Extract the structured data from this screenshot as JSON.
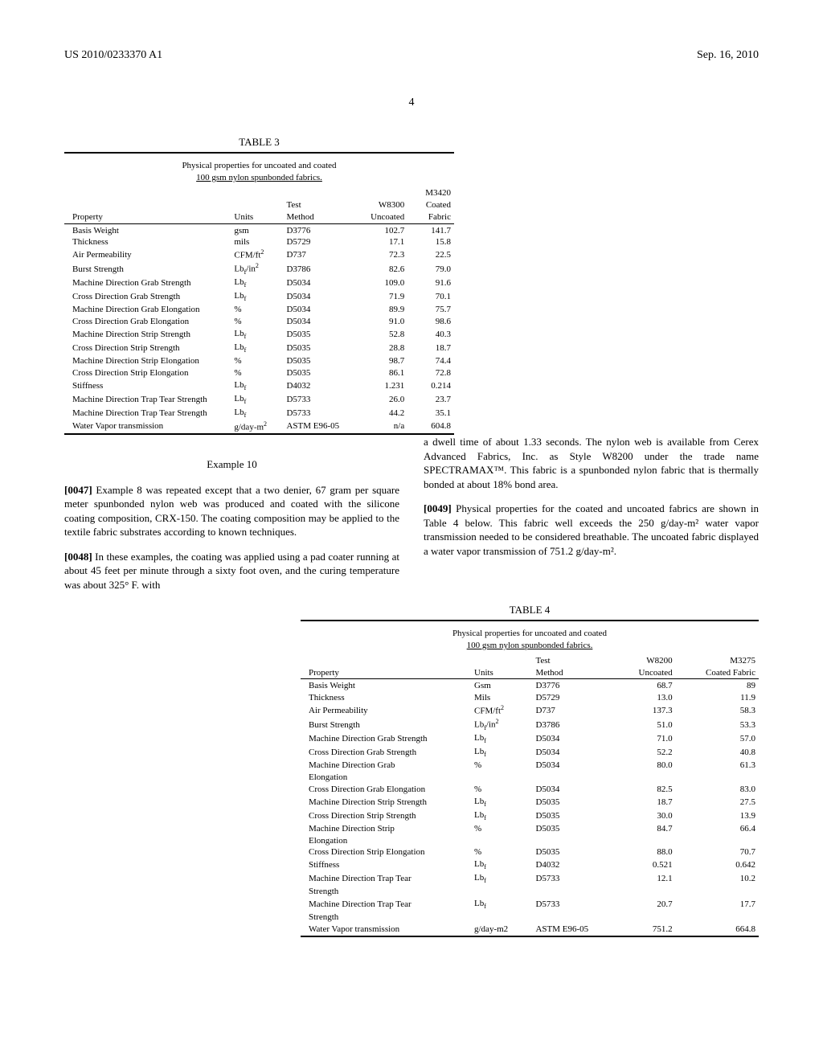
{
  "header": {
    "left": "US 2010/0233370 A1",
    "right": "Sep. 16, 2010",
    "page": "4"
  },
  "table3": {
    "label": "TABLE 3",
    "caption_line1": "Physical properties for uncoated and coated",
    "caption_line2": "100 gsm nylon spunbonded fabrics.",
    "headers": {
      "property": "Property",
      "units": "Units",
      "method": "Test\nMethod",
      "col1": "W8300\nUncoated",
      "col2": "M3420\nCoated\nFabric"
    },
    "rows": [
      {
        "p": "Basis Weight",
        "u": "gsm",
        "m": "D3776",
        "c1": "102.7",
        "c2": "141.7"
      },
      {
        "p": "Thickness",
        "u": "mils",
        "m": "D5729",
        "c1": "17.1",
        "c2": "15.8"
      },
      {
        "p": "Air Permeability",
        "u": "CFM/ft²",
        "m": "D737",
        "c1": "72.3",
        "c2": "22.5"
      },
      {
        "p": "Burst Strength",
        "u": "Lb_f/in²",
        "m": "D3786",
        "c1": "82.6",
        "c2": "79.0"
      },
      {
        "p": "Machine Direction Grab Strength",
        "u": "Lb_f",
        "m": "D5034",
        "c1": "109.0",
        "c2": "91.6"
      },
      {
        "p": "Cross Direction Grab Strength",
        "u": "Lb_f",
        "m": "D5034",
        "c1": "71.9",
        "c2": "70.1"
      },
      {
        "p": "Machine Direction Grab Elongation",
        "u": "%",
        "m": "D5034",
        "c1": "89.9",
        "c2": "75.7"
      },
      {
        "p": "Cross Direction Grab Elongation",
        "u": "%",
        "m": "D5034",
        "c1": "91.0",
        "c2": "98.6"
      },
      {
        "p": "Machine Direction Strip Strength",
        "u": "Lb_f",
        "m": "D5035",
        "c1": "52.8",
        "c2": "40.3"
      },
      {
        "p": "Cross Direction Strip Strength",
        "u": "Lb_f",
        "m": "D5035",
        "c1": "28.8",
        "c2": "18.7"
      },
      {
        "p": "Machine Direction Strip Elongation",
        "u": "%",
        "m": "D5035",
        "c1": "98.7",
        "c2": "74.4"
      },
      {
        "p": "Cross Direction Strip Elongation",
        "u": "%",
        "m": "D5035",
        "c1": "86.1",
        "c2": "72.8"
      },
      {
        "p": "Stiffness",
        "u": "Lb_f",
        "m": "D4032",
        "c1": "1.231",
        "c2": "0.214"
      },
      {
        "p": "Machine Direction Trap Tear Strength",
        "u": "Lb_f",
        "m": "D5733",
        "c1": "26.0",
        "c2": "23.7"
      },
      {
        "p": "Machine Direction Trap Tear Strength",
        "u": "Lb_f",
        "m": "D5733",
        "c1": "44.2",
        "c2": "35.1"
      },
      {
        "p": "Water Vapor transmission",
        "u": "g/day-m²",
        "m": "ASTM E96-05",
        "c1": "n/a",
        "c2": "604.8"
      }
    ]
  },
  "example": {
    "heading": "Example 10",
    "para47_label": "[0047]",
    "para47": "    Example 8 was repeated except that a two denier, 67 gram per square meter spunbonded nylon web was produced and coated with the silicone coating composition, CRX-150. The coating composition may be applied to the textile fabric substrates according to known techniques.",
    "para48_label": "[0048]",
    "para48": "    In these examples, the coating was applied using a pad coater running at about 45 feet per minute through a sixty foot oven, and the curing temperature was about 325° F. with",
    "para48b": "a dwell time of about 1.33 seconds. The nylon web is available from Cerex Advanced Fabrics, Inc. as Style W8200 under the trade name SPECTRAMAX™. This fabric is a spunbonded nylon fabric that is thermally bonded at about 18% bond area.",
    "para49_label": "[0049]",
    "para49": "    Physical properties for the coated and uncoated fabrics are shown in Table 4 below. This fabric well exceeds the 250 g/day-m² water vapor transmission needed to be considered breathable. The uncoated fabric displayed a water vapor transmission of 751.2 g/day-m²."
  },
  "table4": {
    "label": "TABLE 4",
    "caption_line1": "Physical properties for uncoated and coated",
    "caption_line2": "100 gsm nylon spunbonded fabrics.",
    "headers": {
      "property": "Property",
      "units": "Units",
      "method": "Test\nMethod",
      "col1": "W8200\nUncoated",
      "col2": "M3275\nCoated Fabric"
    },
    "rows": [
      {
        "p": "Basis Weight",
        "u": "Gsm",
        "m": "D3776",
        "c1": "68.7",
        "c2": "89"
      },
      {
        "p": "Thickness",
        "u": "Mils",
        "m": "D5729",
        "c1": "13.0",
        "c2": "11.9"
      },
      {
        "p": "Air Permeability",
        "u": "CFM/ft²",
        "m": "D737",
        "c1": "137.3",
        "c2": "58.3"
      },
      {
        "p": "Burst Strength",
        "u": "Lb_f/in²",
        "m": "D3786",
        "c1": "51.0",
        "c2": "53.3"
      },
      {
        "p": "Machine Direction Grab Strength",
        "u": "Lb_f",
        "m": "D5034",
        "c1": "71.0",
        "c2": "57.0"
      },
      {
        "p": "Cross Direction Grab Strength",
        "u": "Lb_f",
        "m": "D5034",
        "c1": "52.2",
        "c2": "40.8"
      },
      {
        "p": "Machine Direction Grab\nElongation",
        "u": "%",
        "m": "D5034",
        "c1": "80.0",
        "c2": "61.3"
      },
      {
        "p": "Cross Direction Grab Elongation",
        "u": "%",
        "m": "D5034",
        "c1": "82.5",
        "c2": "83.0"
      },
      {
        "p": "Machine Direction Strip Strength",
        "u": "Lb_f",
        "m": "D5035",
        "c1": "18.7",
        "c2": "27.5"
      },
      {
        "p": "Cross Direction Strip Strength",
        "u": "Lb_f",
        "m": "D5035",
        "c1": "30.0",
        "c2": "13.9"
      },
      {
        "p": "Machine Direction Strip\nElongation",
        "u": "%",
        "m": "D5035",
        "c1": "84.7",
        "c2": "66.4"
      },
      {
        "p": "Cross Direction Strip Elongation",
        "u": "%",
        "m": "D5035",
        "c1": "88.0",
        "c2": "70.7"
      },
      {
        "p": "Stiffness",
        "u": "Lb_f",
        "m": "D4032",
        "c1": "0.521",
        "c2": "0.642"
      },
      {
        "p": "Machine Direction Trap Tear\nStrength",
        "u": "Lb_f",
        "m": "D5733",
        "c1": "12.1",
        "c2": "10.2"
      },
      {
        "p": "Machine Direction Trap Tear\nStrength",
        "u": "Lb_f",
        "m": "D5733",
        "c1": "20.7",
        "c2": "17.7"
      },
      {
        "p": "Water Vapor transmission",
        "u": "g/day-m2",
        "m": "ASTM E96-05",
        "c1": "751.2",
        "c2": "664.8"
      }
    ]
  }
}
